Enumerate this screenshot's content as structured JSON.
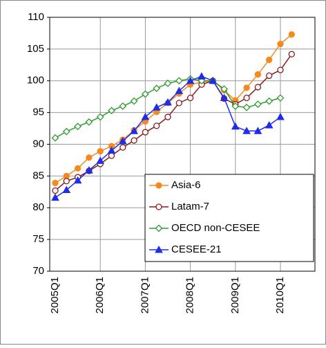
{
  "chart_data": {
    "type": "line",
    "categories": [
      "2005Q1",
      null,
      null,
      null,
      "2006Q1",
      null,
      null,
      null,
      "2007Q1",
      null,
      null,
      null,
      "2008Q1",
      null,
      null,
      null,
      "2009Q1",
      null,
      null,
      null,
      "2010Q1",
      null
    ],
    "series": [
      {
        "name": "Asia-6",
        "color": "#f7891f",
        "marker": "circle-filled",
        "values": [
          83.9,
          85.0,
          86.2,
          87.9,
          88.9,
          89.7,
          90.7,
          92.2,
          93.6,
          95.1,
          96.5,
          98.0,
          99.4,
          99.8,
          100.0,
          98.5,
          96.9,
          98.9,
          101.0,
          103.3,
          105.8,
          107.3
        ]
      },
      {
        "name": "Latam-7",
        "color": "#8b1a1a",
        "marker": "circle-open",
        "values": [
          82.7,
          84.2,
          84.8,
          85.8,
          86.9,
          88.2,
          89.5,
          90.6,
          91.9,
          92.9,
          94.3,
          96.5,
          97.3,
          99.4,
          100.0,
          97.2,
          96.3,
          97.3,
          99.0,
          100.8,
          101.7,
          104.2
        ]
      },
      {
        "name": "OECD non-CESEE",
        "color": "#2e9b2e",
        "marker": "diamond-open",
        "values": [
          91.0,
          92.0,
          92.8,
          93.5,
          94.3,
          95.3,
          96.0,
          96.8,
          97.9,
          98.8,
          99.6,
          100.0,
          100.3,
          100.0,
          100.0,
          98.7,
          96.0,
          95.8,
          96.3,
          96.8,
          97.3,
          null
        ]
      },
      {
        "name": "CESEE-21",
        "color": "#1f2ee6",
        "marker": "triangle-filled",
        "values": [
          81.6,
          82.8,
          84.3,
          85.9,
          87.4,
          89.0,
          90.5,
          92.1,
          94.3,
          95.8,
          96.6,
          98.4,
          100.0,
          100.7,
          100.0,
          97.3,
          92.8,
          92.1,
          92.1,
          93.0,
          94.3,
          null
        ]
      }
    ],
    "ylim": [
      70,
      110
    ],
    "yticks": [
      70,
      75,
      80,
      85,
      90,
      95,
      100,
      105,
      110
    ],
    "grid": true,
    "legend": "lower right"
  }
}
